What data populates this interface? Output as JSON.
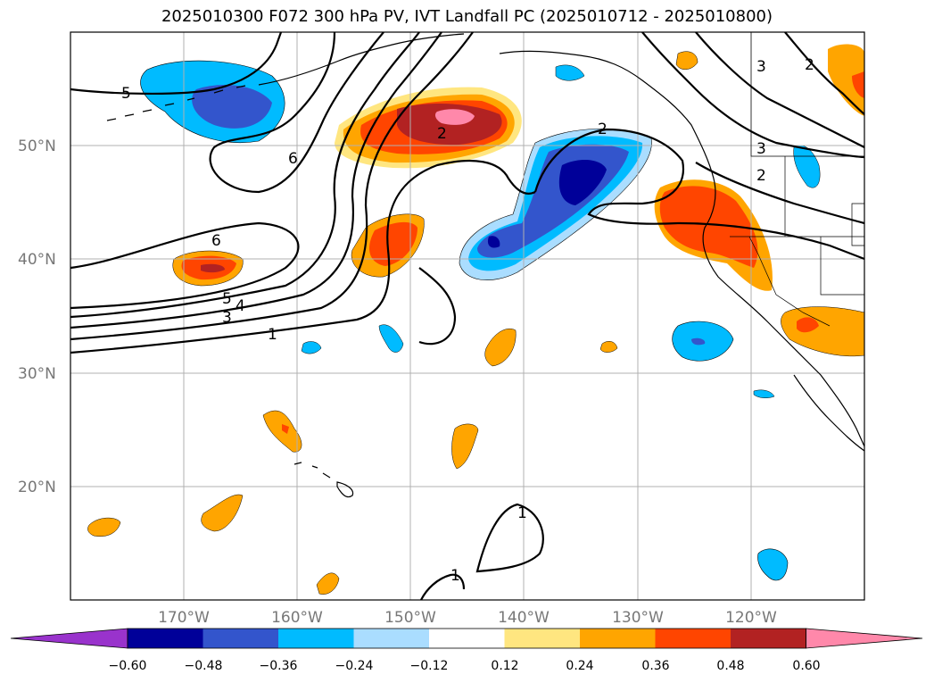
{
  "title": "2025010300 F072 300 hPa PV, IVT Landfall PC (2025010712 - 2025010800)",
  "map": {
    "projection": "PlateCarree",
    "lon_range": [
      -180,
      -110
    ],
    "lat_range": [
      10,
      60
    ],
    "gridlines": true,
    "lat_labels": [
      "50°N",
      "40°N",
      "30°N",
      "20°N"
    ],
    "lon_labels": [
      "170°W",
      "160°W",
      "150°W",
      "140°W",
      "130°W",
      "120°W"
    ]
  },
  "colorbar": {
    "extend": "both",
    "ticks": [
      "−0.60",
      "−0.48",
      "−0.36",
      "−0.24",
      "−0.12",
      "0.12",
      "0.24",
      "0.36",
      "0.48",
      "0.60"
    ],
    "colors": [
      "#9933cc",
      "#000099",
      "#3355cc",
      "#00bbff",
      "#aaddff",
      "#ffffff",
      "#ffe680",
      "#ffa500",
      "#ff4500",
      "#b22222",
      "#ff88aa"
    ]
  },
  "contour_labels": [
    "5",
    "6",
    "6",
    "5",
    "4",
    "3",
    "1",
    "2",
    "2",
    "3",
    "2",
    "2",
    "3",
    "1",
    "1"
  ],
  "colors": {
    "gridline": "#b0b0b0",
    "coastline": "#000000"
  }
}
